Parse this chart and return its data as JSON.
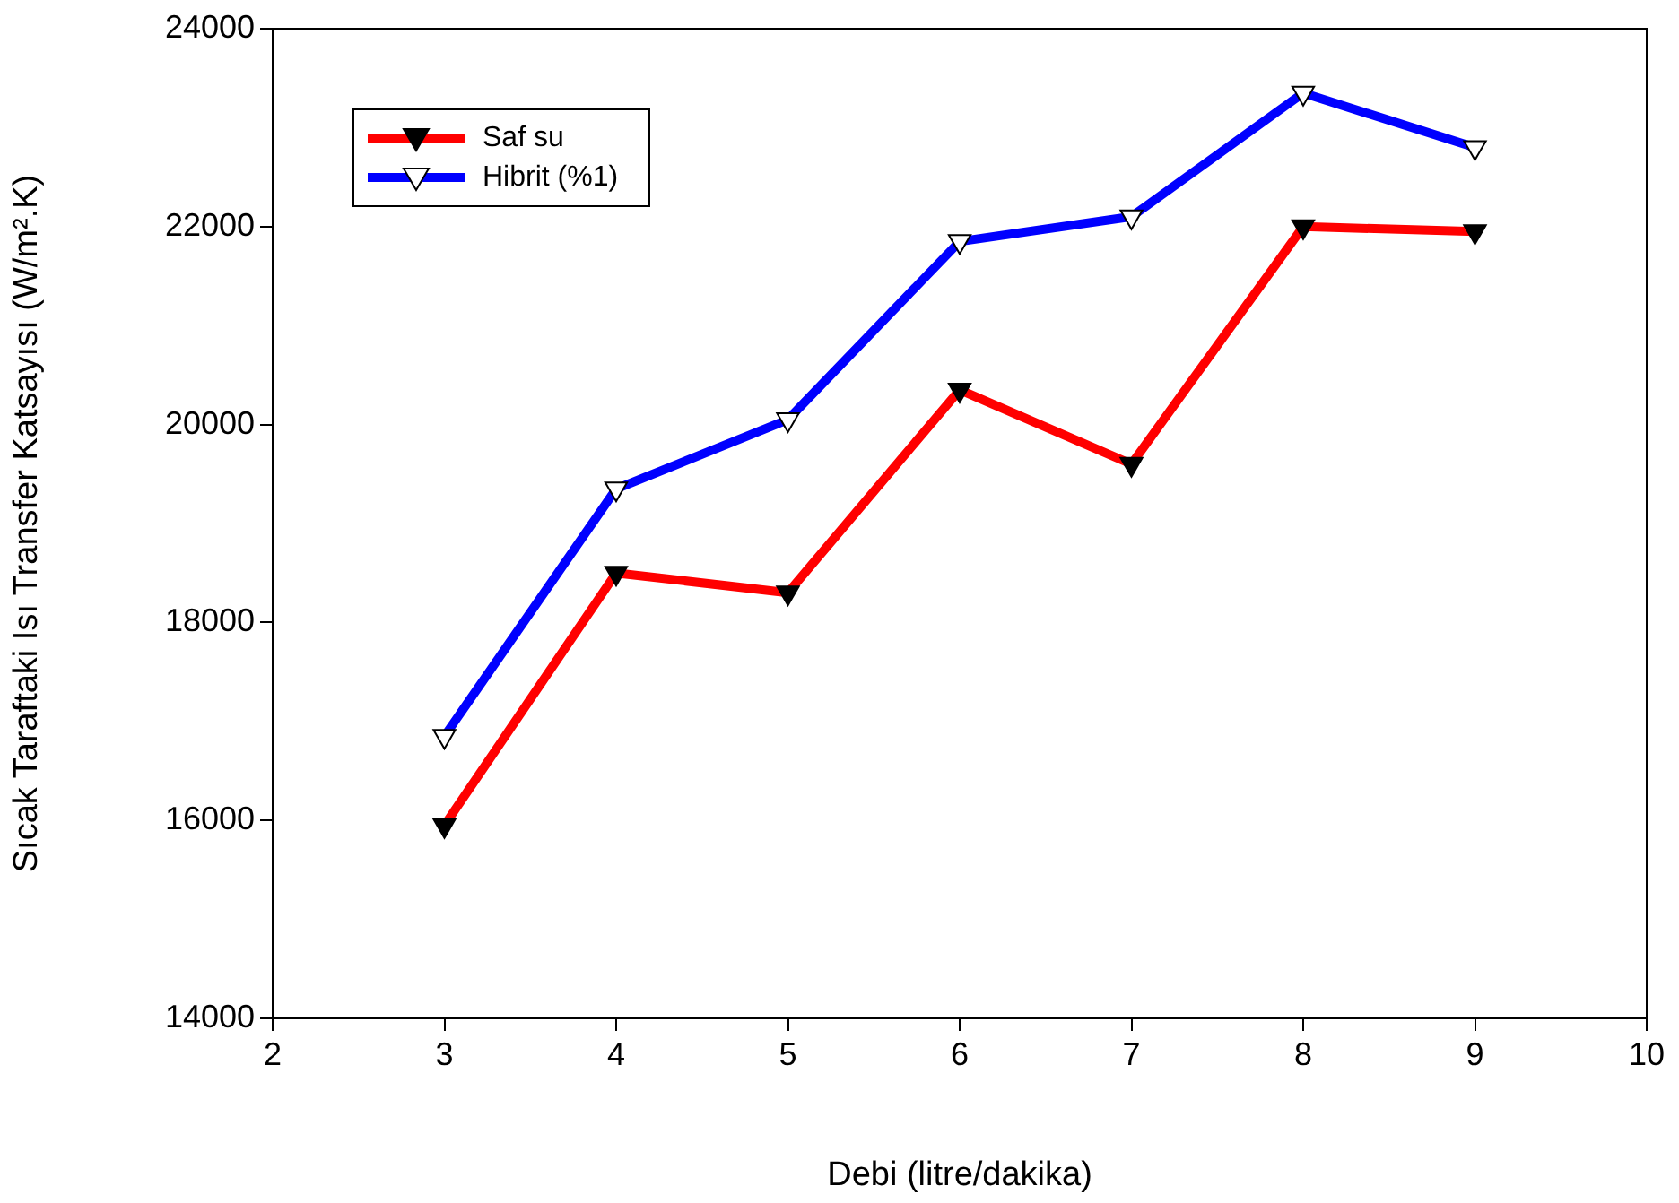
{
  "chart_data": {
    "type": "line",
    "xlabel": "Debi (litre/dakika)",
    "ylabel": "Sıcak Taraftaki Isı Transfer Katsayısı (W/m².K)",
    "x": [
      3,
      4,
      5,
      6,
      7,
      8,
      9
    ],
    "series": [
      {
        "name": "Saf su",
        "color": "#ff0000",
        "values": [
          15950,
          18500,
          18300,
          20350,
          19600,
          22000,
          21950
        ]
      },
      {
        "name": "Hibrit (%1)",
        "color": "#0000ff",
        "values": [
          16850,
          19350,
          20050,
          21850,
          22100,
          23350,
          22800
        ]
      }
    ],
    "xlim": [
      2,
      10
    ],
    "xticks": [
      2,
      3,
      4,
      5,
      6,
      7,
      8,
      9,
      10
    ],
    "ylim": [
      14000,
      24000
    ],
    "yticks": [
      14000,
      16000,
      18000,
      20000,
      22000,
      24000
    ],
    "grid": false,
    "legend": "top left",
    "marker": "triangle",
    "line_style": "solid"
  }
}
